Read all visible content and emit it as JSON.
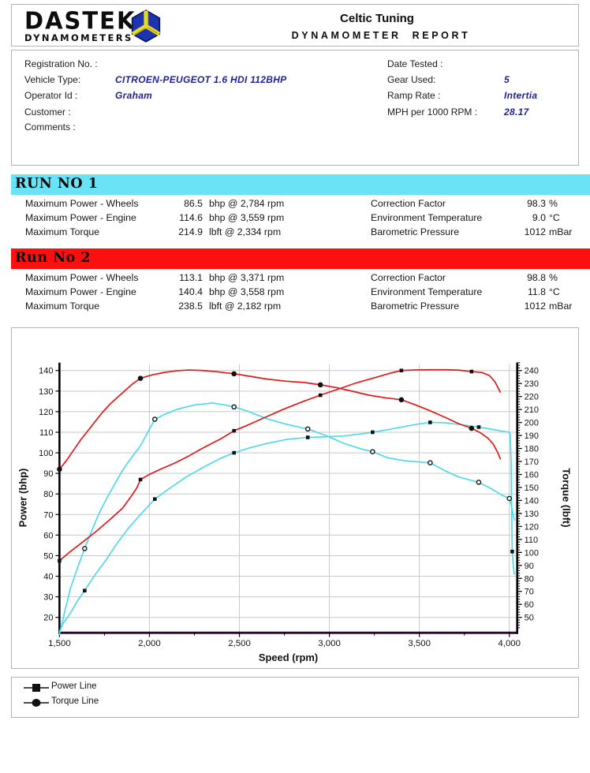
{
  "header": {
    "logo_title": "DASTEK",
    "logo_subtitle": "DYNAMOMETERS",
    "company": "Celtic Tuning",
    "report_title": "DYNAMOMETER REPORT",
    "logo_colors": {
      "cube_blue": "#1e33b0",
      "cube_yellow": "#e9da25",
      "cube_outline": "#0a1560"
    }
  },
  "info": {
    "left": [
      {
        "label": "Registration No. :",
        "value": ""
      },
      {
        "label": "Vehicle Type:",
        "value": "CITROEN-PEUGEOT  1.6 HDI 112BHP"
      },
      {
        "label": "Operator Id :",
        "value": "Graham"
      },
      {
        "label": "Customer :",
        "value": ""
      },
      {
        "label": "Comments :",
        "value": ""
      }
    ],
    "right": [
      {
        "label": "Date Tested :",
        "value": ""
      },
      {
        "label": "Gear Used:",
        "value": "5"
      },
      {
        "label": "Ramp Rate :",
        "value": "Intertia"
      },
      {
        "label": "MPH per 1000 RPM :",
        "value": "28.17"
      }
    ],
    "value_color": "#1f1f9b"
  },
  "runs": [
    {
      "title": "RUN NO 1",
      "banner_color": "#69e3f5",
      "stats": [
        {
          "label": "Maximum Power - Wheels",
          "value": "86.5",
          "unit": "bhp @ 2,784 rpm"
        },
        {
          "label": "Maximum Power - Engine",
          "value": "114.6",
          "unit": "bhp @ 3,559 rpm"
        },
        {
          "label": "Maximum Torque",
          "value": "214.9",
          "unit": "lbft @ 2,334 rpm"
        }
      ],
      "env": [
        {
          "label": "Correction Factor",
          "value": "98.3",
          "unit": "%"
        },
        {
          "label": "Environment Temperature",
          "value": "9.0",
          "unit": "°C"
        },
        {
          "label": "Barometric Pressure",
          "value": "1012",
          "unit": "mBar"
        }
      ]
    },
    {
      "title": "Run No 2",
      "banner_color": "#fb0f0f",
      "stats": [
        {
          "label": "Maximum Power - Wheels",
          "value": "113.1",
          "unit": "bhp @ 3,371 rpm"
        },
        {
          "label": "Maximum Power - Engine",
          "value": "140.4",
          "unit": "bhp @ 3,558 rpm"
        },
        {
          "label": "Maximum Torque",
          "value": "238.5",
          "unit": "lbft @ 2,182 rpm"
        }
      ],
      "env": [
        {
          "label": "Correction Factor",
          "value": "98.8",
          "unit": "%"
        },
        {
          "label": "Environment Temperature",
          "value": "11.8",
          "unit": "°C"
        },
        {
          "label": "Barometric Pressure",
          "value": "1012",
          "unit": "mBar"
        }
      ]
    }
  ],
  "legend": [
    {
      "label": "Power Line",
      "marker": "square"
    },
    {
      "label": "Torque Line",
      "marker": "circle"
    }
  ],
  "chart_data": {
    "type": "line",
    "title": "",
    "xlabel": "Speed (rpm)",
    "ylabel": "Power (bhp)",
    "ylabel_right": "Torque (lbft)",
    "grid": true,
    "grid_color": "#c9c9c9",
    "baseline_color": "#33063a",
    "axis_color": "#000000",
    "x_axis": {
      "label": "Speed (rpm)",
      "min": 1500,
      "max": 4000,
      "ticks": [
        1500,
        2000,
        2500,
        3000,
        3500,
        4000
      ],
      "tick_labels": [
        "1,500",
        "2,000",
        "2,500",
        "3,000",
        "3,500",
        "4,000"
      ],
      "minor_step": 250
    },
    "power_axis": {
      "label": "Power (bhp)",
      "tick_min": 20,
      "tick_max": 140,
      "step": 10,
      "ticks": [
        20,
        30,
        40,
        50,
        60,
        70,
        80,
        90,
        100,
        110,
        120,
        130,
        140
      ]
    },
    "torque_axis": {
      "label": "Torque (lbft)",
      "tick_min": 50,
      "tick_max": 240,
      "step": 10,
      "minor_step": 2,
      "ticks": [
        50,
        60,
        70,
        80,
        90,
        100,
        110,
        120,
        130,
        140,
        150,
        160,
        170,
        180,
        190,
        200,
        210,
        220,
        230,
        240
      ]
    },
    "series": [
      {
        "name": "Run 1 Torque",
        "run": 1,
        "axis": "torque",
        "color": "#4fd9ec",
        "marker": "circle",
        "marker_fill": "#ffffff",
        "points": [
          [
            1500,
            37
          ],
          [
            1530,
            55
          ],
          [
            1560,
            72
          ],
          [
            1600,
            88
          ],
          [
            1640,
            103
          ],
          [
            1680,
            117
          ],
          [
            1720,
            130
          ],
          [
            1760,
            141
          ],
          [
            1800,
            151
          ],
          [
            1850,
            163
          ],
          [
            1900,
            173
          ],
          [
            1950,
            182
          ],
          [
            2030,
            202.5
          ],
          [
            2080,
            206
          ],
          [
            2150,
            210
          ],
          [
            2250,
            213.5
          ],
          [
            2350,
            215
          ],
          [
            2420,
            213.5
          ],
          [
            2470,
            212
          ],
          [
            2550,
            208.5
          ],
          [
            2650,
            203
          ],
          [
            2750,
            199
          ],
          [
            2880,
            195
          ],
          [
            2980,
            190
          ],
          [
            3080,
            184
          ],
          [
            3180,
            179.5
          ],
          [
            3240,
            177.5
          ],
          [
            3320,
            173
          ],
          [
            3420,
            170.5
          ],
          [
            3560,
            169
          ],
          [
            3640,
            163
          ],
          [
            3720,
            158
          ],
          [
            3830,
            154
          ],
          [
            3900,
            149
          ],
          [
            3960,
            144
          ],
          [
            3995,
            142
          ],
          [
            4010,
            137
          ],
          [
            4020,
            130
          ],
          [
            4028,
            125
          ]
        ],
        "marker_points": [
          [
            1640,
            103
          ],
          [
            2030,
            202.5
          ],
          [
            2470,
            212
          ],
          [
            2880,
            195
          ],
          [
            3240,
            177.5
          ],
          [
            3560,
            169
          ],
          [
            3830,
            154
          ],
          [
            4000,
            141.5
          ]
        ]
      },
      {
        "name": "Run 1 Power",
        "run": 1,
        "axis": "power",
        "color": "#4fd9ec",
        "marker": "square",
        "marker_fill": "#111111",
        "points": [
          [
            1500,
            13
          ],
          [
            1520,
            17
          ],
          [
            1560,
            22
          ],
          [
            1600,
            28
          ],
          [
            1640,
            33
          ],
          [
            1700,
            41
          ],
          [
            1760,
            48
          ],
          [
            1820,
            56
          ],
          [
            1880,
            63
          ],
          [
            1950,
            70
          ],
          [
            2030,
            77.5
          ],
          [
            2100,
            82
          ],
          [
            2200,
            88
          ],
          [
            2300,
            93
          ],
          [
            2400,
            97.5
          ],
          [
            2470,
            100
          ],
          [
            2560,
            102.5
          ],
          [
            2650,
            104.5
          ],
          [
            2760,
            106.5
          ],
          [
            2880,
            107.5
          ],
          [
            2980,
            107.8
          ],
          [
            3080,
            108.2
          ],
          [
            3160,
            109
          ],
          [
            3240,
            110
          ],
          [
            3320,
            111.2
          ],
          [
            3400,
            112.5
          ],
          [
            3480,
            113.8
          ],
          [
            3560,
            114.8
          ],
          [
            3640,
            114.6
          ],
          [
            3720,
            113.8
          ],
          [
            3830,
            112.5
          ],
          [
            3900,
            111.5
          ],
          [
            3960,
            110.5
          ],
          [
            4000,
            110
          ],
          [
            4005,
            109
          ],
          [
            4010,
            95
          ],
          [
            4014,
            65
          ],
          [
            4016,
            52
          ],
          [
            4022,
            45
          ],
          [
            4028,
            41
          ]
        ],
        "marker_points": [
          [
            1640,
            33
          ],
          [
            2030,
            77.5
          ],
          [
            2470,
            100
          ],
          [
            2880,
            107.5
          ],
          [
            3240,
            110
          ],
          [
            3560,
            114.8
          ],
          [
            3830,
            112.5
          ],
          [
            4016,
            52
          ]
        ]
      },
      {
        "name": "Run 2 Torque",
        "run": 2,
        "axis": "torque",
        "color": "#e01919",
        "marker": "circle",
        "marker_fill": "#111111",
        "points": [
          [
            1500,
            164
          ],
          [
            1540,
            171
          ],
          [
            1580,
            179
          ],
          [
            1620,
            187
          ],
          [
            1660,
            194
          ],
          [
            1700,
            201
          ],
          [
            1740,
            208
          ],
          [
            1780,
            214
          ],
          [
            1820,
            219
          ],
          [
            1860,
            224
          ],
          [
            1900,
            229
          ],
          [
            1950,
            234
          ],
          [
            2010,
            236.5
          ],
          [
            2080,
            238.5
          ],
          [
            2150,
            239.8
          ],
          [
            2220,
            240.4
          ],
          [
            2300,
            240
          ],
          [
            2380,
            239
          ],
          [
            2470,
            237.5
          ],
          [
            2560,
            235.5
          ],
          [
            2650,
            233.5
          ],
          [
            2760,
            231.8
          ],
          [
            2860,
            230.8
          ],
          [
            2950,
            229
          ],
          [
            3040,
            226.8
          ],
          [
            3130,
            224
          ],
          [
            3220,
            221
          ],
          [
            3310,
            219
          ],
          [
            3400,
            217.5
          ],
          [
            3480,
            213.5
          ],
          [
            3560,
            209
          ],
          [
            3650,
            203.5
          ],
          [
            3720,
            199
          ],
          [
            3790,
            195.5
          ],
          [
            3840,
            192
          ],
          [
            3880,
            188
          ],
          [
            3910,
            183.5
          ],
          [
            3935,
            177
          ],
          [
            3950,
            172
          ]
        ],
        "marker_points": [
          [
            1500,
            164
          ],
          [
            1950,
            234
          ],
          [
            2470,
            237.5
          ],
          [
            2950,
            229
          ],
          [
            3400,
            217.5
          ],
          [
            3790,
            195.5
          ]
        ]
      },
      {
        "name": "Run 2 Power",
        "run": 2,
        "axis": "power",
        "color": "#e01919",
        "marker": "square",
        "marker_fill": "#111111",
        "points": [
          [
            1500,
            47.5
          ],
          [
            1560,
            52
          ],
          [
            1620,
            56
          ],
          [
            1700,
            61.5
          ],
          [
            1780,
            67.5
          ],
          [
            1850,
            73
          ],
          [
            1900,
            79
          ],
          [
            1930,
            83
          ],
          [
            1950,
            87
          ],
          [
            2000,
            89.5
          ],
          [
            2060,
            92
          ],
          [
            2140,
            95
          ],
          [
            2220,
            98.5
          ],
          [
            2300,
            102.5
          ],
          [
            2400,
            107
          ],
          [
            2470,
            110.7
          ],
          [
            2560,
            114
          ],
          [
            2650,
            117.5
          ],
          [
            2740,
            121
          ],
          [
            2840,
            124.5
          ],
          [
            2950,
            128
          ],
          [
            3050,
            131
          ],
          [
            3150,
            134
          ],
          [
            3250,
            136.5
          ],
          [
            3330,
            138.5
          ],
          [
            3400,
            140
          ],
          [
            3480,
            140.3
          ],
          [
            3560,
            140.4
          ],
          [
            3650,
            140.4
          ],
          [
            3720,
            140.2
          ],
          [
            3790,
            139.5
          ],
          [
            3850,
            139
          ],
          [
            3890,
            137.5
          ],
          [
            3920,
            134.5
          ],
          [
            3950,
            129.5
          ]
        ],
        "marker_points": [
          [
            1500,
            47.5
          ],
          [
            1950,
            87
          ],
          [
            2470,
            110.7
          ],
          [
            2950,
            128
          ],
          [
            3400,
            140
          ],
          [
            3790,
            139.5
          ]
        ]
      }
    ]
  }
}
